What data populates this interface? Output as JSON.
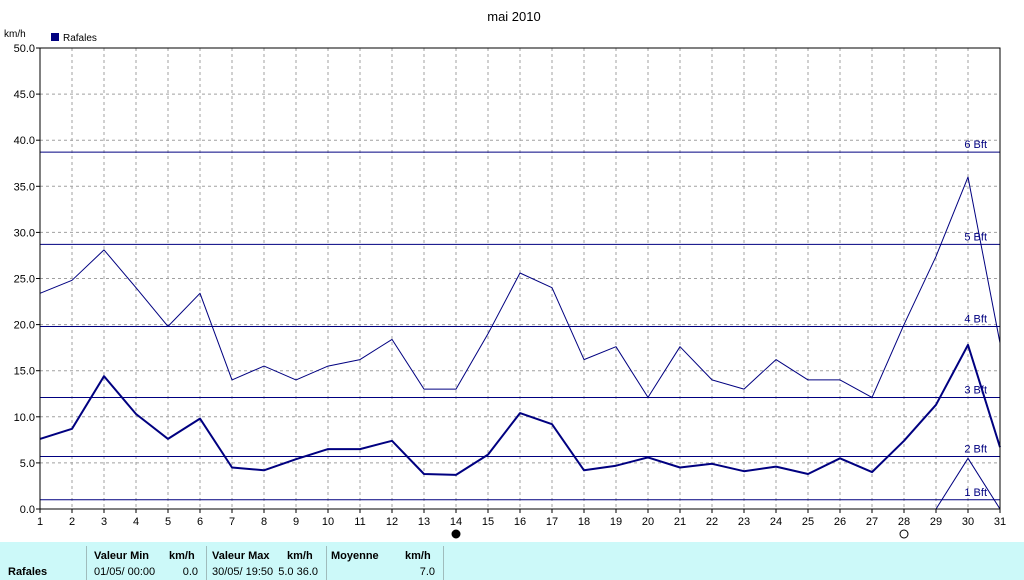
{
  "chart_data": {
    "type": "line",
    "title": "mai 2010",
    "ylabel": "km/h",
    "ylim": [
      0,
      50
    ],
    "yticks": [
      "0.0",
      "5.0",
      "10.0",
      "15.0",
      "20.0",
      "25.0",
      "30.0",
      "35.0",
      "40.0",
      "45.0",
      "50.0"
    ],
    "x": [
      1,
      2,
      3,
      4,
      5,
      6,
      7,
      8,
      9,
      10,
      11,
      12,
      13,
      14,
      15,
      16,
      17,
      18,
      19,
      20,
      21,
      22,
      23,
      24,
      25,
      26,
      27,
      28,
      29,
      30,
      31
    ],
    "xticks": [
      "1",
      "2",
      "3",
      "4",
      "5",
      "6",
      "7",
      "8",
      "9",
      "10",
      "11",
      "12",
      "13",
      "14",
      "15",
      "16",
      "17",
      "18",
      "19",
      "20",
      "21",
      "22",
      "23",
      "24",
      "25",
      "26",
      "27",
      "28",
      "29",
      "30",
      "31"
    ],
    "grid": true,
    "legend": "top-left",
    "series": [
      {
        "name": "Rafales",
        "role": "max",
        "values": [
          23.4,
          24.8,
          28.1,
          24.0,
          19.8,
          23.4,
          14.0,
          15.5,
          14.0,
          15.5,
          16.2,
          18.4,
          13.0,
          13.0,
          19.0,
          25.6,
          24.0,
          16.2,
          17.6,
          12.1,
          17.6,
          14.0,
          13.0,
          16.2,
          14.0,
          14.0,
          12.1,
          20.0,
          27.4,
          36.0,
          18.0
        ]
      },
      {
        "name": "Rafales",
        "role": "mean",
        "values": [
          7.6,
          8.7,
          14.4,
          10.3,
          7.6,
          9.8,
          4.5,
          4.2,
          5.4,
          6.5,
          6.5,
          7.4,
          3.8,
          3.7,
          5.9,
          10.4,
          9.2,
          4.2,
          4.7,
          5.6,
          4.5,
          4.9,
          4.1,
          4.6,
          3.8,
          5.5,
          4.0,
          7.4,
          11.3,
          17.8,
          6.7
        ]
      },
      {
        "name": "Rafales",
        "role": "min",
        "values": [
          null,
          null,
          null,
          null,
          null,
          null,
          null,
          null,
          null,
          null,
          null,
          null,
          null,
          null,
          null,
          null,
          null,
          null,
          null,
          null,
          null,
          null,
          null,
          null,
          null,
          null,
          null,
          null,
          0.0,
          5.5,
          0.0
        ]
      }
    ],
    "beaufort": [
      {
        "label": "1 Bft",
        "value": 1.0
      },
      {
        "label": "2 Bft",
        "value": 5.7
      },
      {
        "label": "3 Bft",
        "value": 12.1
      },
      {
        "label": "4 Bft",
        "value": 19.8
      },
      {
        "label": "5 Bft",
        "value": 28.7
      },
      {
        "label": "6 Bft",
        "value": 38.7
      }
    ],
    "moon_phases": [
      {
        "day": 14,
        "phase": "new-moon"
      },
      {
        "day": 28,
        "phase": "full-moon"
      }
    ]
  },
  "colors": {
    "series": "#000080",
    "grid": "#a0a0a0",
    "axis": "#000000",
    "stats_bg": "#ccf9f9"
  },
  "stats": {
    "row_label": "Rafales",
    "min_header": "Valeur Min",
    "min_unit": "km/h",
    "min_date": "01/05/  00:00",
    "min_value": "0.0",
    "max_header": "Valeur Max",
    "max_unit": "km/h",
    "max_date": "30/05/  19:50",
    "max_value": "5.0  36.0",
    "mean_header": "Moyenne",
    "mean_unit": "km/h",
    "mean_value": "7.0"
  }
}
